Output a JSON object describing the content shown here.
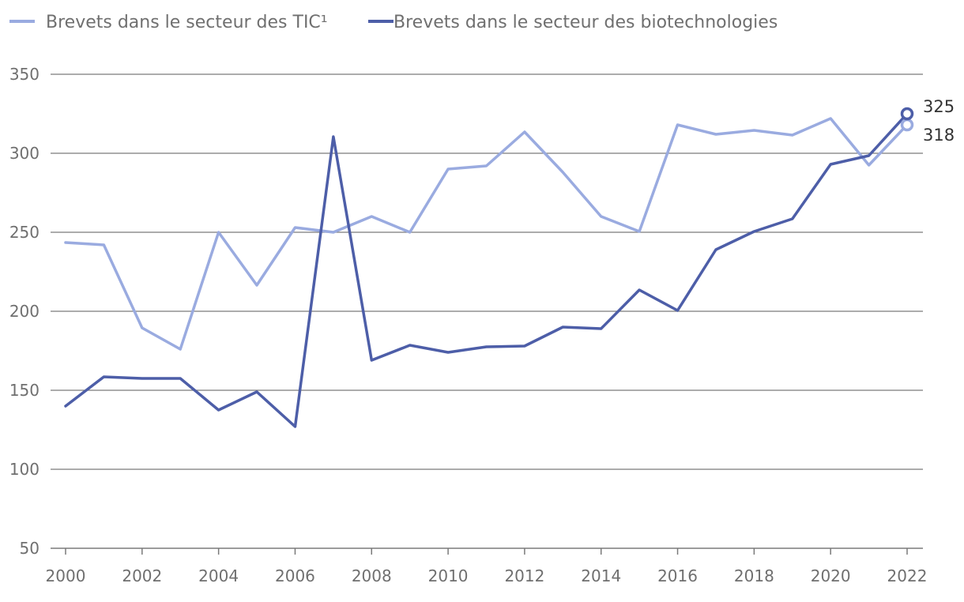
{
  "chart_data": {
    "type": "line",
    "title": "",
    "xlabel": "",
    "ylabel": "",
    "x": [
      2000,
      2001,
      2002,
      2003,
      2004,
      2005,
      2006,
      2007,
      2008,
      2009,
      2010,
      2011,
      2012,
      2013,
      2014,
      2015,
      2016,
      2017,
      2018,
      2019,
      2020,
      2021,
      2022
    ],
    "x_ticks": [
      2000,
      2002,
      2004,
      2006,
      2008,
      2010,
      2012,
      2014,
      2016,
      2018,
      2020,
      2022
    ],
    "x_tick_labels": [
      "2000",
      "2002",
      "2004",
      "2006",
      "2008",
      "2010",
      "2012",
      "2014",
      "2016",
      "2018",
      "2020",
      "2022"
    ],
    "xlim": [
      2000,
      2022
    ],
    "y_ticks": [
      50,
      100,
      150,
      200,
      250,
      300,
      350
    ],
    "y_tick_labels": [
      "50",
      "100",
      "150",
      "200",
      "250",
      "300",
      "350"
    ],
    "ylim": [
      50,
      350
    ],
    "grid": "horizontal",
    "legend_position": "top-left",
    "series": [
      {
        "name": "Brevets dans le secteur des TIC¹",
        "color": "#9aabe0",
        "values": [
          243.5,
          242,
          189.5,
          176,
          250,
          216.5,
          253,
          250,
          260,
          250,
          290,
          292,
          313.5,
          288,
          260,
          250.5,
          318,
          312,
          314.5,
          311.5,
          322,
          292.5,
          318
        ],
        "end_label": "318"
      },
      {
        "name": "Brevets dans le secteur des biotechnologies",
        "color": "#4d5ea8",
        "values": [
          140,
          158.5,
          157.5,
          157.5,
          137.5,
          149,
          127,
          310.5,
          169,
          178.5,
          174,
          177.5,
          178,
          190,
          189,
          213.5,
          200.5,
          239,
          250.5,
          258.5,
          293,
          298.5,
          325
        ],
        "end_label": "325"
      }
    ]
  }
}
